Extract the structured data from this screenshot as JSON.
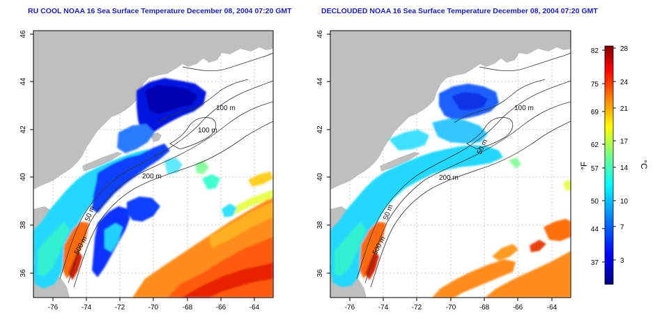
{
  "left_panel": {
    "title": "RU COOL NOAA 16 Sea Surface Temperature December 08, 2004 07:20 GMT",
    "contour_labels": [
      "100 m",
      "100 m",
      "200 m",
      "50 m",
      "500 m"
    ]
  },
  "right_panel": {
    "title": "DECLOUDED NOAA 16 Sea Surface Temperature December 08, 2004 07:20 GMT",
    "contour_labels": [
      "100 m",
      "50 m",
      "200 m",
      "50 m",
      "500 m"
    ]
  },
  "axes": {
    "x_ticks": [
      "-76",
      "-74",
      "-72",
      "-70",
      "-68",
      "-66",
      "-64"
    ],
    "y_ticks": [
      "46",
      "44",
      "42",
      "40",
      "38",
      "36"
    ]
  },
  "colorbar": {
    "unit_f": "°F",
    "unit_c": "°C",
    "f_ticks": [
      "82",
      "75",
      "69",
      "62",
      "57",
      "50",
      "44",
      "37"
    ],
    "c_ticks": [
      "28",
      "24",
      "21",
      "17",
      "14",
      "10",
      "7",
      "3"
    ],
    "colors": [
      "#00007f",
      "#0000ff",
      "#0080ff",
      "#00ffff",
      "#80ff80",
      "#ffff00",
      "#ff8000",
      "#ff0000",
      "#7f0000"
    ]
  },
  "colors": {
    "land": "#bfbfbf",
    "ocean": "#ffffff",
    "title": "#1c1cb4",
    "grid": "#b8b8b8"
  }
}
